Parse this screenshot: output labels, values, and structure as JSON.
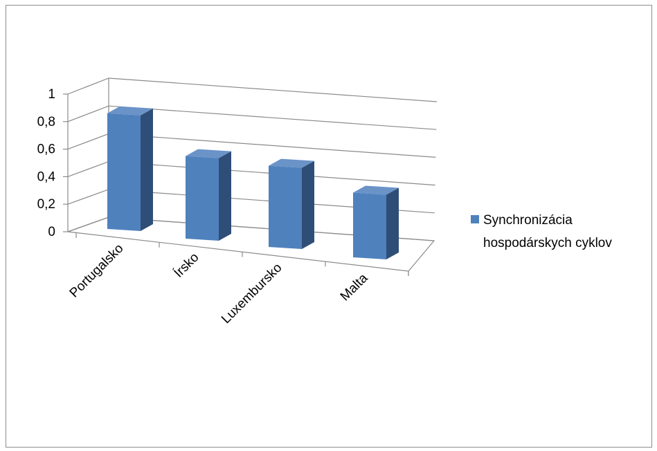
{
  "chart_data": {
    "type": "bar",
    "categories": [
      "Portugalsko",
      "Írsko",
      "Luxembursko",
      "Malta"
    ],
    "series": [
      {
        "name": "Synchronizácia hospodárskych cyklov",
        "values": [
          0.84,
          0.6,
          0.59,
          0.47
        ]
      }
    ],
    "title": "",
    "xlabel": "",
    "ylabel": "",
    "ylim": [
      0,
      1
    ],
    "yticks": [
      "0",
      "0,2",
      "0,4",
      "0,6",
      "0,8",
      "1"
    ],
    "grid": true,
    "legend_position": "right",
    "bar_color": "#4f81bd"
  }
}
